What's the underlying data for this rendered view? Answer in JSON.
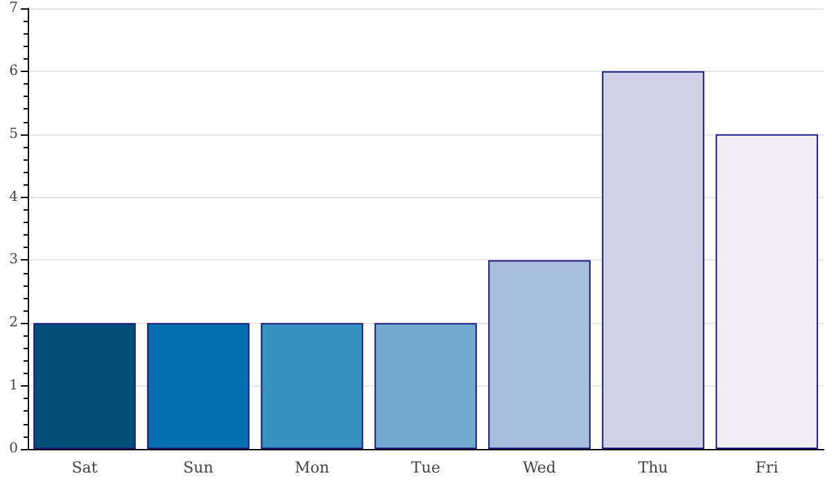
{
  "chart_data": {
    "type": "bar",
    "categories": [
      "Sat",
      "Sun",
      "Mon",
      "Tue",
      "Wed",
      "Thu",
      "Fri"
    ],
    "values": [
      2,
      2,
      2,
      2,
      3,
      6,
      5
    ],
    "colors": [
      "#034e7b",
      "#0570b0",
      "#3690c0",
      "#74a9cf",
      "#a6bddb",
      "#d0d1e6",
      "#f1eef6"
    ],
    "ylim": [
      0,
      7
    ],
    "yticks": [
      0,
      1,
      2,
      3,
      4,
      5,
      6,
      7
    ],
    "grid": "y"
  }
}
